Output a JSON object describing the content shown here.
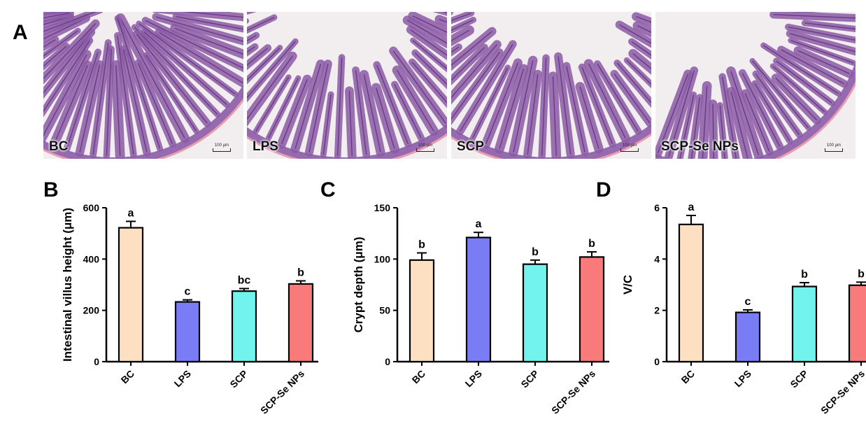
{
  "panel_letters": {
    "a": "A",
    "b": "B",
    "c": "C",
    "d": "D"
  },
  "micrographs": [
    {
      "label": "BC",
      "scale": "100 μm",
      "content": "lumen-center"
    },
    {
      "label": "LPS",
      "scale": "100 μm",
      "content": "lumen-top"
    },
    {
      "label": "SCP",
      "scale": "100 μm",
      "content": "lumen-top"
    },
    {
      "label": "SCP-Se NPs",
      "scale": "100 μm",
      "content": "lumen-left"
    }
  ],
  "colors": {
    "BC": "#fde0c2",
    "LPS": "#7a7cf6",
    "SCP": "#73f3ee",
    "SCP-Se NPs": "#f97a7a",
    "tissue": "#8b5ba6",
    "tissue_dark": "#5a2f7a",
    "serosa": "#e89ab0",
    "background": "#f2eef0"
  },
  "chart_data": [
    {
      "type": "bar",
      "panel": "B",
      "categories": [
        "BC",
        "LPS",
        "SCP",
        "SCP-Se NPs"
      ],
      "values": [
        522,
        233,
        275,
        303
      ],
      "errors": [
        25,
        8,
        10,
        12
      ],
      "significance": [
        "a",
        "c",
        "bc",
        "b"
      ],
      "ylabel": "Intestinal villus height (μm)",
      "ylim": [
        0,
        600
      ],
      "yticks": [
        0,
        200,
        400,
        600
      ]
    },
    {
      "type": "bar",
      "panel": "C",
      "categories": [
        "BC",
        "LPS",
        "SCP",
        "SCP-Se NPs"
      ],
      "values": [
        99,
        121,
        95,
        102
      ],
      "errors": [
        7,
        5,
        4,
        5
      ],
      "significance": [
        "b",
        "a",
        "b",
        "b"
      ],
      "ylabel": "Crypt depth (μm)",
      "ylim": [
        0,
        150
      ],
      "yticks": [
        0,
        50,
        100,
        150
      ]
    },
    {
      "type": "bar",
      "panel": "D",
      "categories": [
        "BC",
        "LPS",
        "SCP",
        "SCP-Se NPs"
      ],
      "values": [
        5.35,
        1.92,
        2.93,
        2.98
      ],
      "errors": [
        0.35,
        0.1,
        0.15,
        0.12
      ],
      "significance": [
        "a",
        "c",
        "b",
        "b"
      ],
      "ylabel": "V/C",
      "ylim": [
        0,
        6
      ],
      "yticks": [
        0,
        2,
        4,
        6
      ]
    }
  ]
}
